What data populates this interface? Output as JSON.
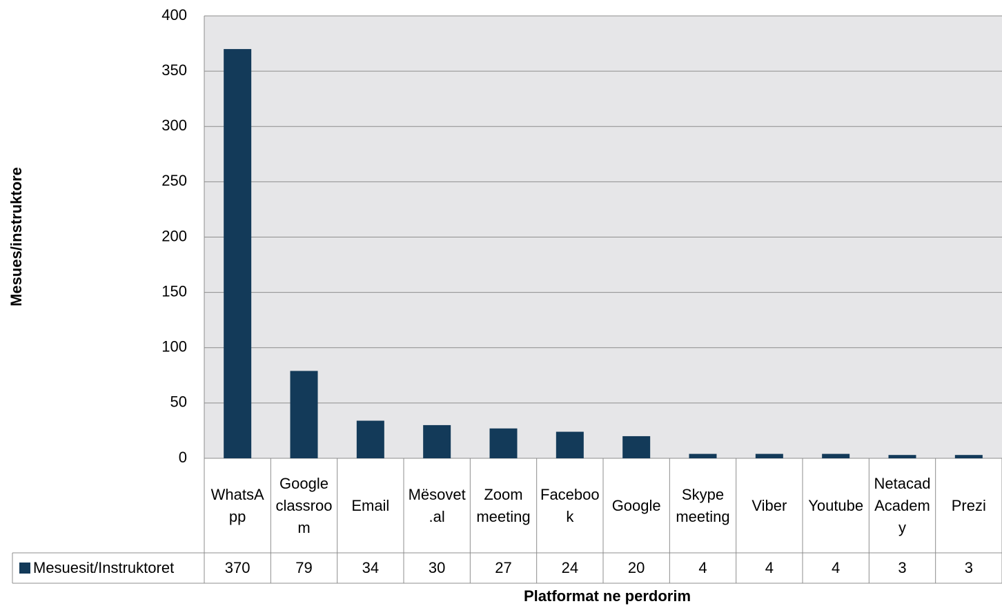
{
  "chart_data": {
    "type": "bar",
    "x_label": "Platformat ne perdorim",
    "y_label": "Mesues/instruktore",
    "categories": [
      "WhatsApp",
      "Google classroom",
      "Email",
      "Mësovet.al",
      "Zoom meeting",
      "Facebook",
      "Google",
      "Skype meeting",
      "Viber",
      "Youtube",
      "Netacad Academy",
      "Prezi"
    ],
    "series": [
      {
        "name": "Mesuesit/Instruktoret",
        "color": "#133a59",
        "values": [
          370,
          79,
          34,
          30,
          27,
          24,
          20,
          4,
          4,
          4,
          3,
          3
        ]
      }
    ],
    "ylim": [
      0,
      400
    ],
    "yticks": [
      0,
      50,
      100,
      150,
      200,
      250,
      300,
      350,
      400
    ],
    "grid": true
  }
}
